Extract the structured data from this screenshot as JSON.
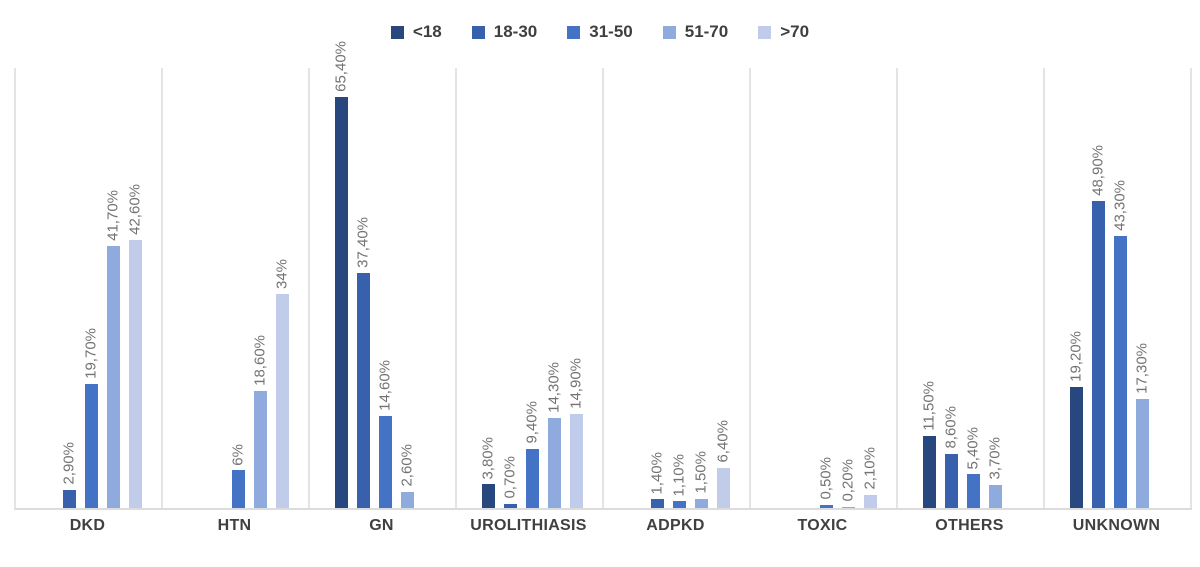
{
  "chart_data": {
    "type": "bar",
    "title": "",
    "xlabel": "",
    "ylabel": "",
    "ylim": [
      0,
      70
    ],
    "axis_ticks_visible": false,
    "legend_position": "top",
    "value_label_rotation": 90,
    "value_label_decimal_separator": "comma",
    "grid": "vertical-category-separators",
    "categories": [
      "DKD",
      "HTN",
      "GN",
      "UROLITHIASIS",
      "ADPKD",
      "TOXIC",
      "OTHERS",
      "UNKNOWN"
    ],
    "series": [
      {
        "name": "<18",
        "color": "#27477e",
        "values": [
          null,
          null,
          65.4,
          3.8,
          null,
          null,
          11.5,
          19.2
        ],
        "labels": [
          null,
          null,
          "65,40%",
          "3,80%",
          null,
          null,
          "11,50%",
          "19,20%"
        ]
      },
      {
        "name": "18-30",
        "color": "#3861ad",
        "values": [
          2.9,
          null,
          37.4,
          0.7,
          1.4,
          null,
          8.6,
          48.9
        ],
        "labels": [
          "2,90%",
          null,
          "37,40%",
          "0,70%",
          "1,40%",
          null,
          "8,60%",
          "48,90%"
        ]
      },
      {
        "name": "31-50",
        "color": "#4472c4",
        "values": [
          19.7,
          6,
          14.6,
          9.4,
          1.1,
          0.5,
          5.4,
          43.3
        ],
        "labels": [
          "19,70%",
          "6%",
          "14,60%",
          "9,40%",
          "1,10%",
          "0,50%",
          "5,40%",
          "43,30%"
        ]
      },
      {
        "name": "51-70",
        "color": "#8faadc",
        "values": [
          41.7,
          18.6,
          2.6,
          14.3,
          1.5,
          0.2,
          3.7,
          17.3
        ],
        "labels": [
          "41,70%",
          "18,60%",
          "2,60%",
          "14,30%",
          "1,50%",
          "0,20%",
          "3,70%",
          "17,30%"
        ]
      },
      {
        "name": ">70",
        "color": "#c1ccea",
        "values": [
          42.6,
          34,
          null,
          14.9,
          6.4,
          2.1,
          null,
          null
        ],
        "labels": [
          "42,60%",
          "34%",
          null,
          "14,90%",
          "6,40%",
          "2,10%",
          null,
          null
        ]
      }
    ]
  },
  "colors": {
    "value_label": "#737373",
    "category_label": "#404040",
    "legend_label": "#3f3f3f",
    "gridline": "#e4e4e6",
    "axis_line": "#dcdcde",
    "background": "#ffffff"
  }
}
